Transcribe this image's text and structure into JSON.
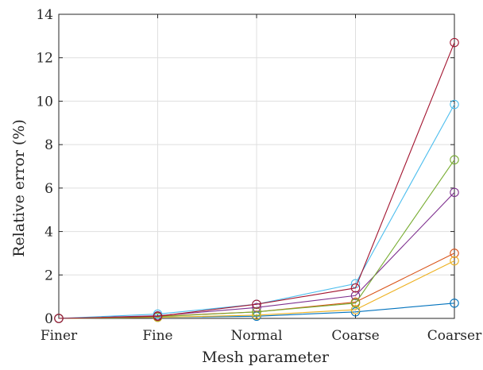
{
  "chart_data": {
    "type": "line",
    "categories": [
      "Finer",
      "Fine",
      "Normal",
      "Coarse",
      "Coarser"
    ],
    "xlabel": "Mesh parameter",
    "ylabel": "Relative error (%)",
    "ylim": [
      0,
      14
    ],
    "yticks": [
      0,
      2,
      4,
      6,
      8,
      10,
      12,
      14
    ],
    "grid": true,
    "marker": "circle",
    "series": [
      {
        "color": "#0072BD",
        "values": [
          0,
          0.05,
          0.1,
          0.3,
          0.7
        ]
      },
      {
        "color": "#D95319",
        "values": [
          0,
          0.1,
          0.3,
          0.75,
          3.0
        ]
      },
      {
        "color": "#EDB120",
        "values": [
          0,
          0.05,
          0.15,
          0.4,
          2.65
        ]
      },
      {
        "color": "#7E2F8E",
        "values": [
          0,
          0.12,
          0.5,
          1.05,
          5.8
        ]
      },
      {
        "color": "#77AC30",
        "values": [
          0,
          0.08,
          0.3,
          0.7,
          7.3
        ]
      },
      {
        "color": "#4DBEEE",
        "values": [
          0,
          0.2,
          0.65,
          1.6,
          9.85
        ]
      },
      {
        "color": "#A2142F",
        "values": [
          0,
          0.1,
          0.65,
          1.4,
          12.7
        ]
      }
    ]
  }
}
